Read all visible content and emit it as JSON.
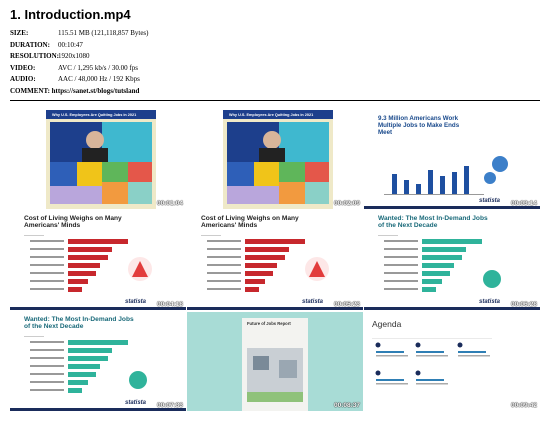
{
  "header": {
    "title": "1. Introduction.mp4",
    "fields": [
      {
        "label": "SIZE:",
        "value": "115.51 MB (121,118,857 Bytes)"
      },
      {
        "label": "DURATION:",
        "value": "00:10:47"
      },
      {
        "label": "RESOLUTION:",
        "value": "1920x1080"
      },
      {
        "label": "VIDEO:",
        "value": "AVC / 1,295 kb/s / 30.00 fps"
      },
      {
        "label": "AUDIO:",
        "value": "AAC / 48,000 Hz / 192 Kbps"
      }
    ],
    "comment": "COMMENT: https://sanet.st/blogs/tutsland"
  },
  "thumbnails": [
    {
      "slide_title": "Why U.S. Employees Are Quitting Jobs in 2021",
      "timestamp": "00:01:04"
    },
    {
      "slide_title": "Why U.S. Employees Are Quitting Jobs in 2021",
      "timestamp": "00:02:09"
    },
    {
      "slide_title": "9.3 Million Americans Work Multiple Jobs to Make Ends Meet",
      "logo": "statista",
      "timestamp": "00:03:14"
    },
    {
      "slide_title": "Cost of Living Weighs on Many Americans' Minds",
      "logo": "statista",
      "timestamp": "00:04:18"
    },
    {
      "slide_title": "Cost of Living Weighs on Many Americans' Minds",
      "logo": "statista",
      "timestamp": "00:05:23"
    },
    {
      "slide_title": "Wanted: The Most In-Demand Jobs of the Next Decade",
      "logo": "statista",
      "timestamp": "00:06:28"
    },
    {
      "slide_title": "Wanted: The Most In-Demand Jobs of the Next Decade",
      "logo": "statista",
      "timestamp": "00:07:33"
    },
    {
      "slide_title": "Future of Jobs Report",
      "timestamp": "00:08:37"
    },
    {
      "slide_title": "Agenda",
      "timestamp": "00:09:42"
    }
  ]
}
